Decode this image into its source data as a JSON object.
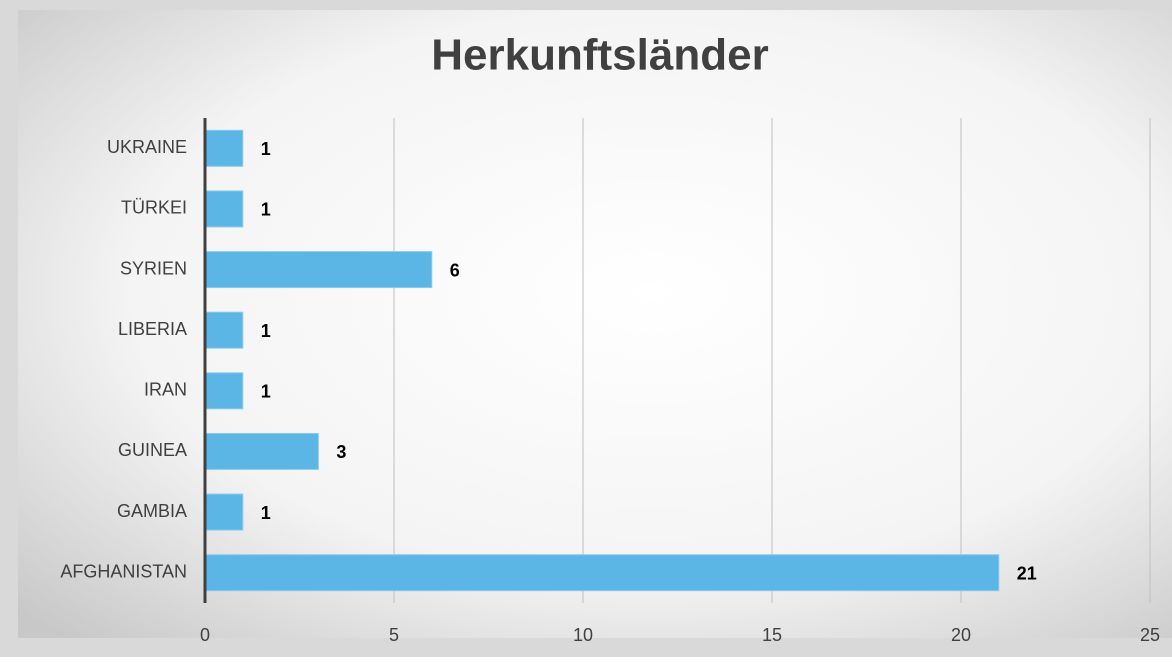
{
  "chart_data": {
    "type": "bar",
    "orientation": "horizontal",
    "title": "Herkunftsländer",
    "categories": [
      "AFGHANISTAN",
      "GAMBIA",
      "GUINEA",
      "IRAN",
      "LIBERIA",
      "SYRIEN",
      "TÜRKEI",
      "UKRAINE"
    ],
    "values": [
      21,
      1,
      3,
      1,
      1,
      6,
      1,
      1
    ],
    "color": "#5bb6e6",
    "xlim": [
      0,
      25
    ],
    "xticks": [
      0,
      5,
      10,
      15,
      20,
      25
    ],
    "grid": true
  }
}
